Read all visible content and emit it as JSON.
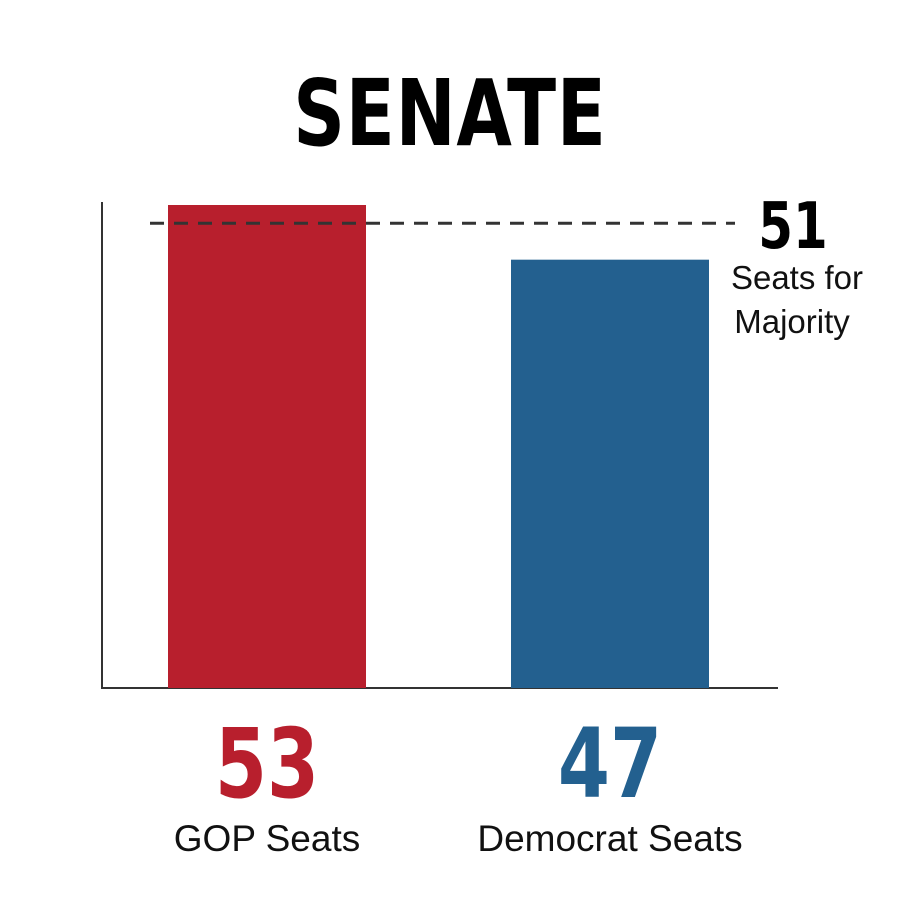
{
  "chart_data": {
    "type": "bar",
    "title": "SENATE",
    "categories": [
      "GOP Seats",
      "Democrat Seats"
    ],
    "values": [
      53,
      47
    ],
    "value_labels": [
      "53",
      "47"
    ],
    "colors": [
      "#b81f2d",
      "#23608f"
    ],
    "ylim": [
      0,
      53
    ],
    "reference_line": {
      "value": 51,
      "value_label": "51",
      "label_line1": "Seats for",
      "label_line2": "Majority"
    },
    "xlabel": "",
    "ylabel": ""
  }
}
